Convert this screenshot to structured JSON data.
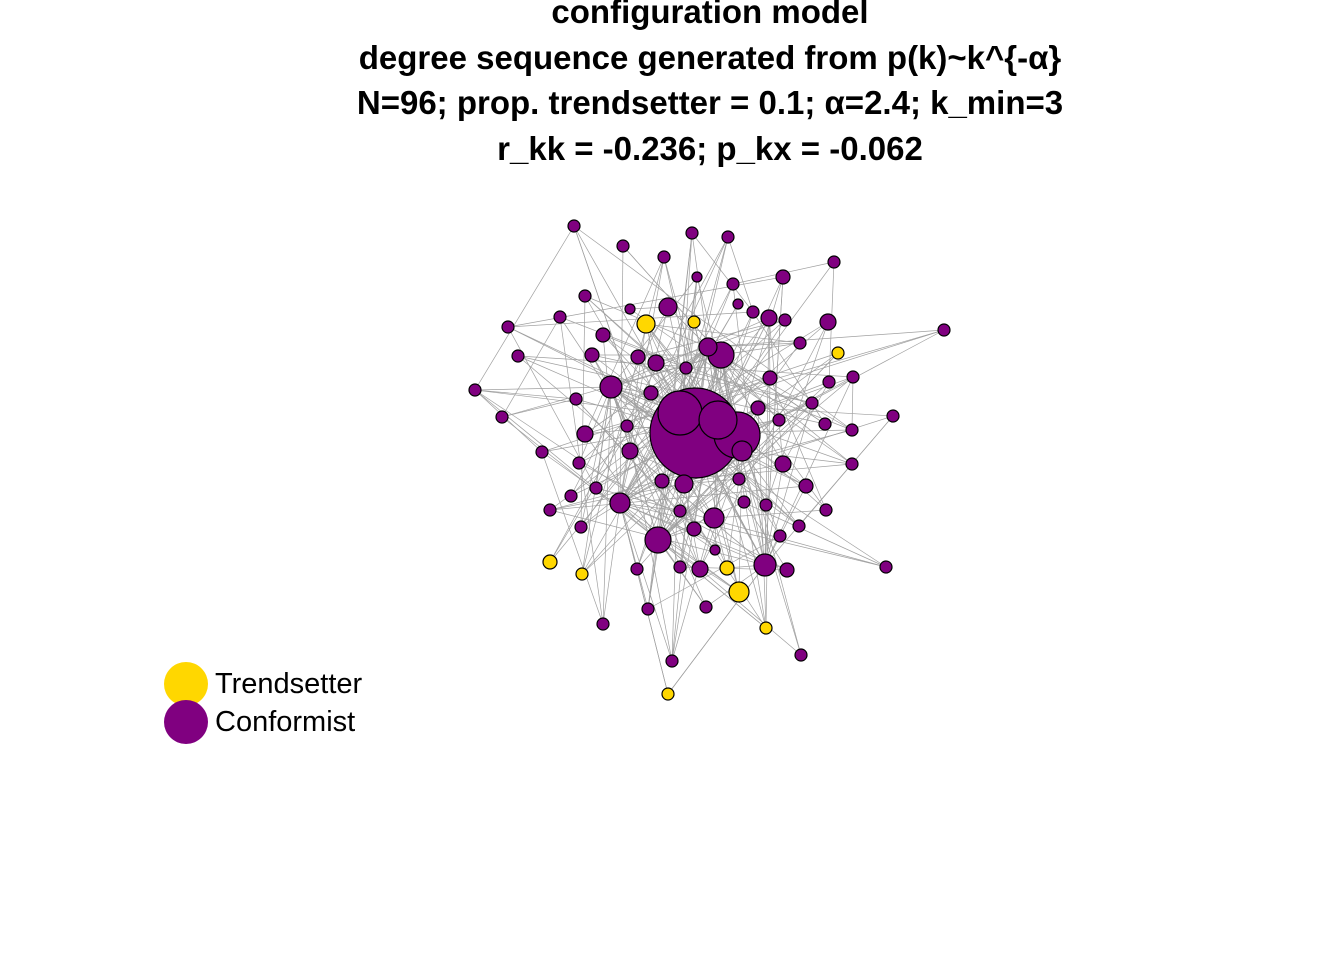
{
  "title": {
    "line1": "configuration model",
    "line2": "degree sequence generated from p(k)~k^{-α}",
    "line3": "N=96; prop. trendsetter = 0.1; α=2.4; k_min=3",
    "line4": "r_kk = -0.236; p_kx = -0.062"
  },
  "legend": {
    "trendsetter": {
      "label": "Trendsetter",
      "color": "#FFD700"
    },
    "conformist": {
      "label": "Conformist",
      "color": "#800080"
    }
  },
  "network": {
    "node_count": 96,
    "edge_color": "#A0A0A0",
    "node_stroke": "#000000",
    "node_types": [
      "conformist",
      "trendsetter"
    ]
  }
}
